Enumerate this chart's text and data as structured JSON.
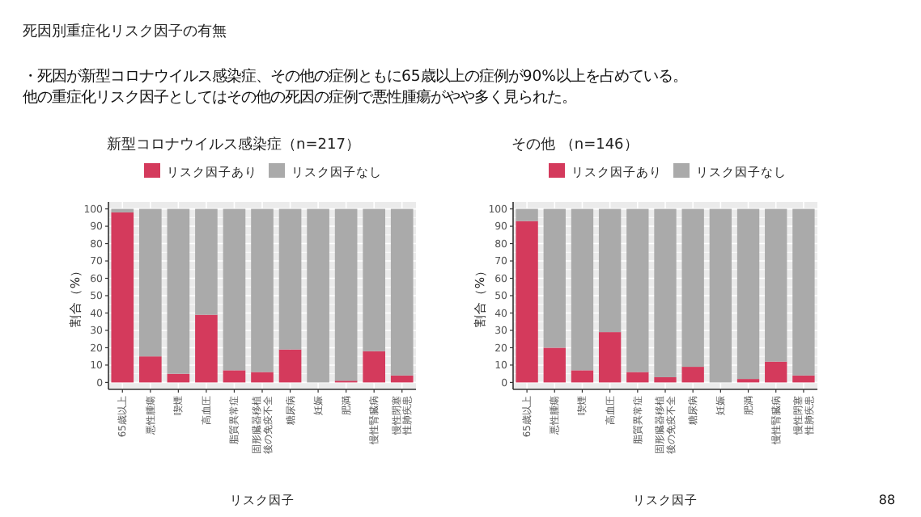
{
  "chart_data": [
    {
      "type": "other",
      "title": "死因別重症化リスク因子の有無",
      "annotations": [
        "・死因が新型コロナウイルス感染症、その他の症例ともに65歳以上の症例が90%以上を占めている。",
        "他の重症化リスク因子としてはその他の死因の症例で悪性腫瘍がやや多く見られた。",
        "88"
      ]
    },
    {
      "type": "bar",
      "stacked": true,
      "title": "新型コロナウイルス感染症（n=217）",
      "xlabel": "リスク因子",
      "ylabel": "割合（%）",
      "categories": [
        "65歳以上",
        "悪性腫瘍",
        "喫煙",
        "高血圧",
        "脂質異常症",
        "固形臓器移植後の免疫不全",
        "糖尿病",
        "妊娠",
        "肥満",
        "慢性腎臓病",
        "慢性閉塞性肺疾患"
      ],
      "series": [
        {
          "name": "リスク因子あり",
          "color": "#d43a5c",
          "values": [
            98,
            15,
            5,
            39,
            7,
            6,
            19,
            0,
            1,
            18,
            4
          ]
        },
        {
          "name": "リスク因子なし",
          "color": "#aaaaaa",
          "values": [
            2,
            85,
            95,
            61,
            93,
            94,
            81,
            100,
            99,
            82,
            96
          ]
        }
      ],
      "ylim": [
        -4,
        104
      ],
      "yticks": [
        0,
        10,
        20,
        30,
        40,
        50,
        60,
        70,
        80,
        90,
        100
      ],
      "grid": true,
      "legend": "top"
    },
    {
      "type": "bar",
      "stacked": true,
      "title": "その他 （n=146）",
      "xlabel": "リスク因子",
      "ylabel": "割合（%）",
      "categories": [
        "65歳以上",
        "悪性腫瘍",
        "喫煙",
        "高血圧",
        "脂質異常症",
        "固形臓器移植後の免疫不全",
        "糖尿病",
        "妊娠",
        "肥満",
        "慢性腎臓病",
        "慢性閉塞性肺疾患"
      ],
      "series": [
        {
          "name": "リスク因子あり",
          "color": "#d43a5c",
          "values": [
            93,
            20,
            7,
            29,
            6,
            3,
            9,
            0,
            2,
            12,
            4
          ]
        },
        {
          "name": "リスク因子なし",
          "color": "#aaaaaa",
          "values": [
            7,
            80,
            93,
            71,
            94,
            97,
            91,
            100,
            98,
            88,
            96
          ]
        }
      ],
      "ylim": [
        -4,
        104
      ],
      "yticks": [
        0,
        10,
        20,
        30,
        40,
        50,
        60,
        70,
        80,
        90,
        100
      ],
      "grid": true,
      "legend": "top"
    }
  ]
}
